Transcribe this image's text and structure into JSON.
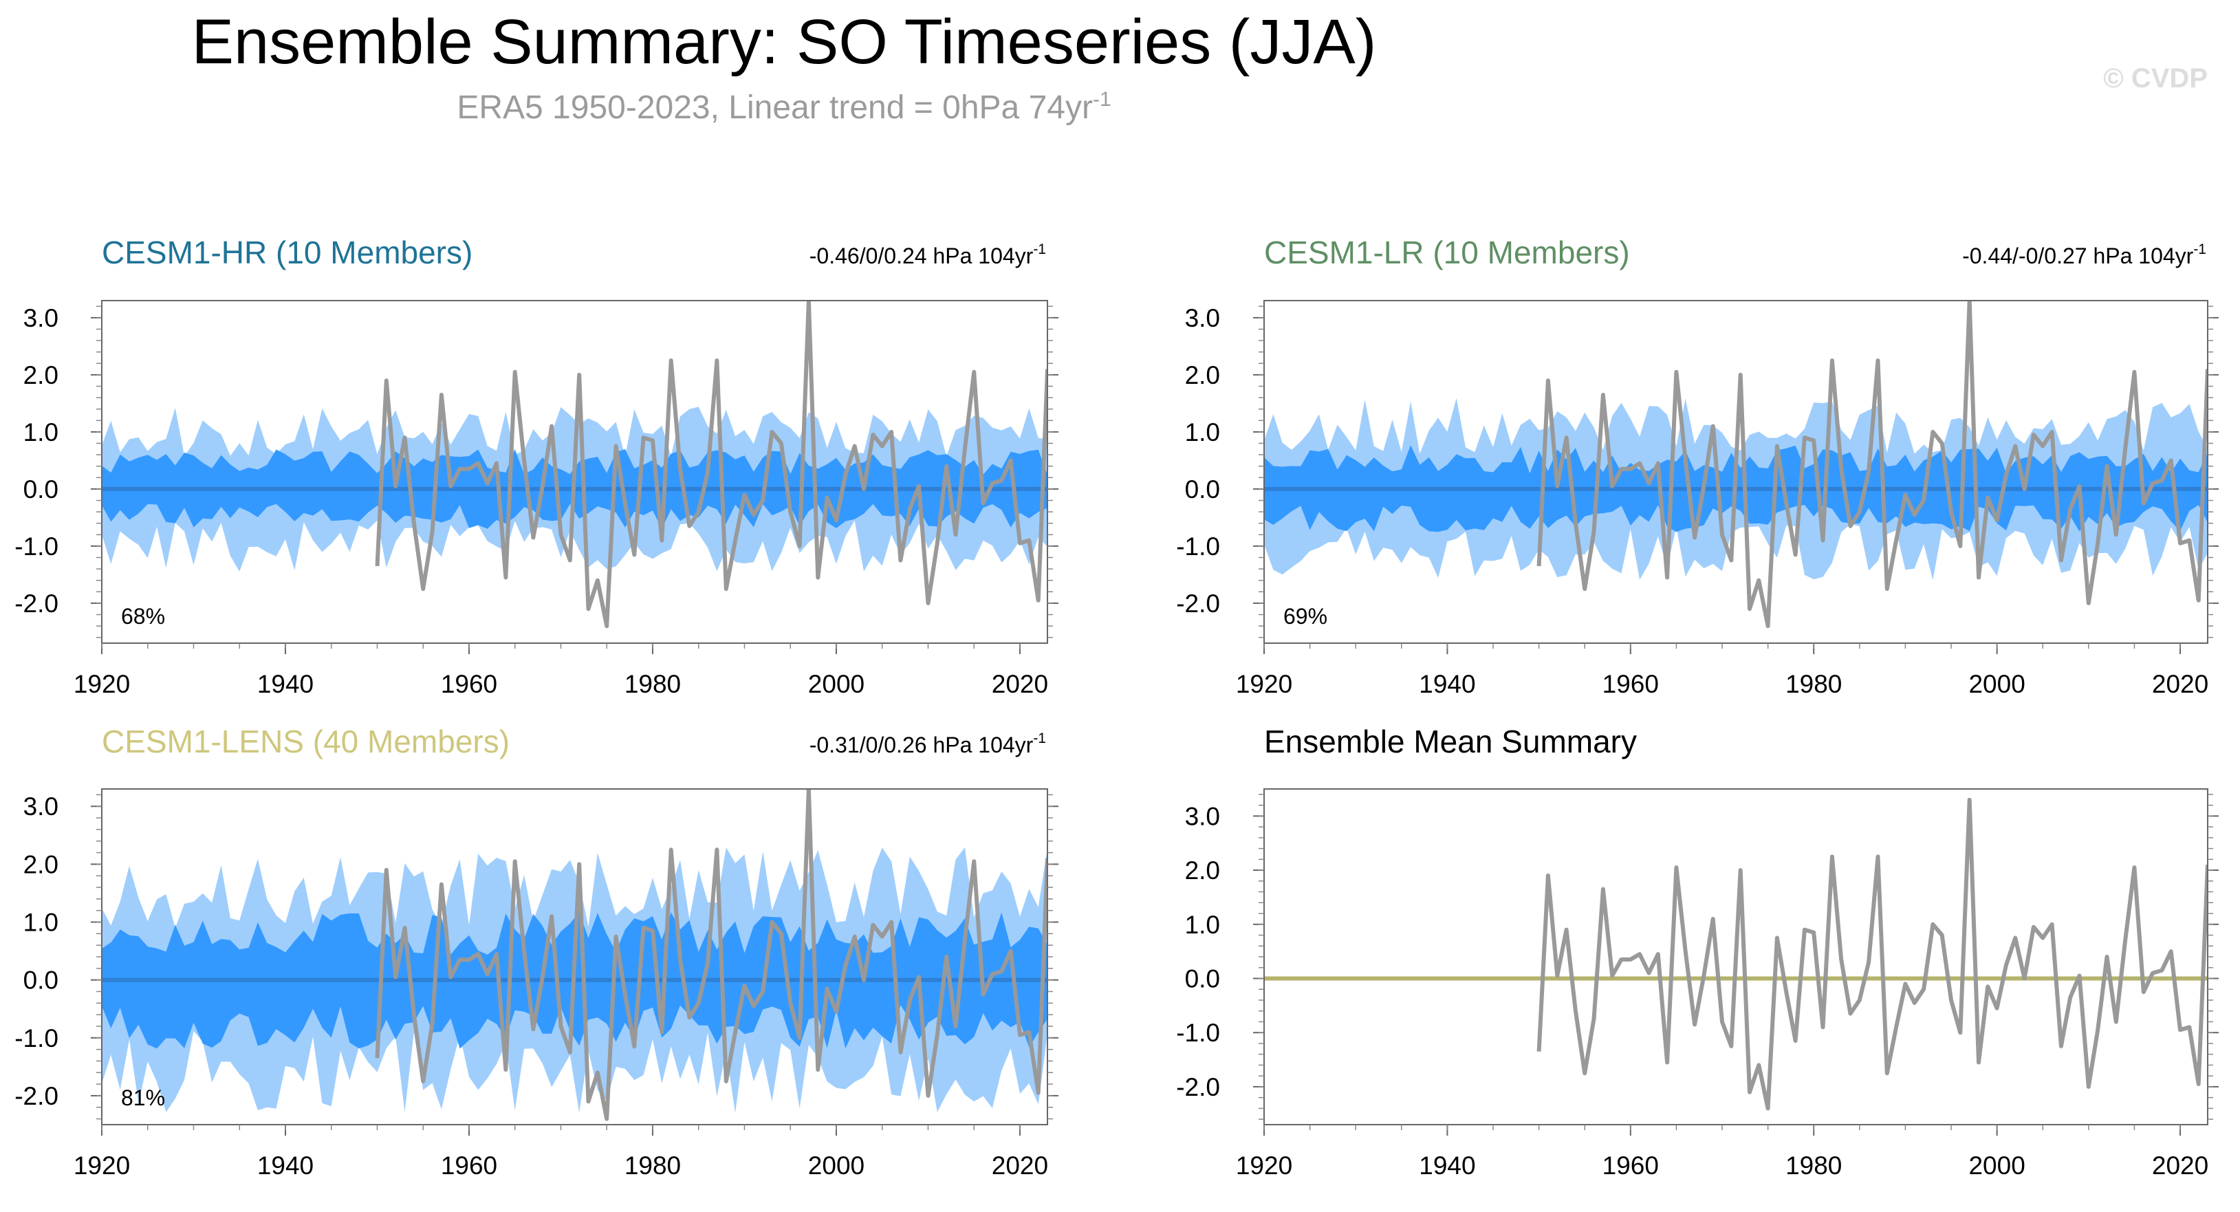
{
  "title": "Ensemble Summary: SO Timeseries (JJA)",
  "subtitle": {
    "main": "ERA5 1950-2023, Linear trend = 0hPa 74yr",
    "sup": "-1"
  },
  "watermark": "© CVDP",
  "colors": {
    "outer_band": "#9fcefd",
    "inner_band": "#3399ff",
    "ens_mean_line": "#2f7fd4",
    "obs_line": "#999999",
    "summary_zero_line": "#b5b36b",
    "title_hr": "#1f7397",
    "title_lr": "#5f8f64",
    "title_lens": "#cec77d",
    "title_summary": "#000000",
    "subtitle": "#9b9b9b",
    "watermark": "#dddddd"
  },
  "chart_data": [
    {
      "id": "hr",
      "type": "line",
      "title": "CESM1-HR (10 Members)",
      "trend_text": "-0.46/0/0.24 hPa 104yr",
      "trend_sup": "-1",
      "percent_label": "68%",
      "x_range": [
        1920,
        2023
      ],
      "ylim": [
        -2.7,
        3.3
      ],
      "yticks": [
        3.0,
        2.0,
        1.0,
        0.0,
        -1.0,
        -2.0
      ],
      "ytick_labels": [
        "3.0",
        "2.0",
        "1.0",
        "0.0",
        "-1.0",
        "-2.0"
      ],
      "xticks": [
        1920,
        1940,
        1960,
        1980,
        2000,
        2020
      ],
      "xtick_labels": [
        "1920",
        "1940",
        "1960",
        "1980",
        "2000",
        "2020"
      ],
      "outer_amplitude": 1.0,
      "inner_amplitude": 0.5,
      "band_seed": 11,
      "show_bands": true,
      "ensemble_mean_value": 0.0
    },
    {
      "id": "lr",
      "type": "line",
      "title": "CESM1-LR (10 Members)",
      "trend_text": "-0.44/-0/0.27 hPa 104yr",
      "trend_sup": "-1",
      "percent_label": "69%",
      "x_range": [
        1920,
        2023
      ],
      "ylim": [
        -2.7,
        3.3
      ],
      "yticks": [
        3.0,
        2.0,
        1.0,
        0.0,
        -1.0,
        -2.0
      ],
      "ytick_labels": [
        "3.0",
        "2.0",
        "1.0",
        "0.0",
        "-1.0",
        "-2.0"
      ],
      "xticks": [
        1920,
        1940,
        1960,
        1980,
        2000,
        2020
      ],
      "xtick_labels": [
        "1920",
        "1940",
        "1960",
        "1980",
        "2000",
        "2020"
      ],
      "outer_amplitude": 1.1,
      "inner_amplitude": 0.55,
      "band_seed": 23,
      "show_bands": true,
      "ensemble_mean_value": 0.0
    },
    {
      "id": "lens",
      "type": "line",
      "title": "CESM1-LENS (40 Members)",
      "trend_text": "-0.31/0/0.26 hPa 104yr",
      "trend_sup": "-1",
      "percent_label": "81%",
      "x_range": [
        1920,
        2023
      ],
      "ylim": [
        -2.5,
        3.3
      ],
      "yticks": [
        3.0,
        2.0,
        1.0,
        0.0,
        -1.0,
        -2.0
      ],
      "ytick_labels": [
        "3.0",
        "2.0",
        "1.0",
        "0.0",
        "-1.0",
        "-2.0"
      ],
      "xticks": [
        1920,
        1940,
        1960,
        1980,
        2000,
        2020
      ],
      "xtick_labels": [
        "1920",
        "1940",
        "1960",
        "1980",
        "2000",
        "2020"
      ],
      "outer_amplitude": 1.6,
      "inner_amplitude": 0.85,
      "band_seed": 37,
      "show_bands": true,
      "ensemble_mean_value": 0.0
    },
    {
      "id": "summary",
      "type": "line",
      "title": "Ensemble Mean Summary",
      "trend_text": "",
      "trend_sup": "",
      "percent_label": "",
      "x_range": [
        1920,
        2023
      ],
      "ylim": [
        -2.7,
        3.5
      ],
      "yticks": [
        3.0,
        2.0,
        1.0,
        0.0,
        -1.0,
        -2.0
      ],
      "ytick_labels": [
        "3.0",
        "2.0",
        "1.0",
        "0.0",
        "-1.0",
        "-2.0"
      ],
      "xticks": [
        1920,
        1940,
        1960,
        1980,
        2000,
        2020
      ],
      "xtick_labels": [
        "1920",
        "1940",
        "1960",
        "1980",
        "2000",
        "2020"
      ],
      "show_bands": false,
      "ensemble_mean_value": 0.0
    }
  ],
  "observations": {
    "name": "ERA5",
    "years": [
      1950,
      1951,
      1952,
      1953,
      1954,
      1955,
      1956,
      1957,
      1958,
      1959,
      1960,
      1961,
      1962,
      1963,
      1964,
      1965,
      1966,
      1967,
      1968,
      1969,
      1970,
      1971,
      1972,
      1973,
      1974,
      1975,
      1976,
      1977,
      1978,
      1979,
      1980,
      1981,
      1982,
      1983,
      1984,
      1985,
      1986,
      1987,
      1988,
      1989,
      1990,
      1991,
      1992,
      1993,
      1994,
      1995,
      1996,
      1997,
      1998,
      1999,
      2000,
      2001,
      2002,
      2003,
      2004,
      2005,
      2006,
      2007,
      2008,
      2009,
      2010,
      2011,
      2012,
      2013,
      2014,
      2015,
      2016,
      2017,
      2018,
      2019,
      2020,
      2021,
      2022,
      2023
    ],
    "values": [
      -1.35,
      1.9,
      0.05,
      0.9,
      -0.6,
      -1.75,
      -0.75,
      1.65,
      0.05,
      0.35,
      0.35,
      0.45,
      0.1,
      0.45,
      -1.55,
      2.05,
      0.5,
      -0.85,
      0.05,
      1.1,
      -0.8,
      -1.25,
      2.0,
      -2.1,
      -1.6,
      -2.4,
      0.75,
      -0.25,
      -1.15,
      0.9,
      0.85,
      -0.9,
      2.25,
      0.35,
      -0.65,
      -0.4,
      0.3,
      2.25,
      -1.75,
      -0.9,
      -0.1,
      -0.45,
      -0.2,
      1.0,
      0.8,
      -0.4,
      -1.0,
      3.3,
      -1.55,
      -0.15,
      -0.55,
      0.25,
      0.75,
      0.0,
      0.95,
      0.75,
      1.0,
      -1.25,
      -0.35,
      0.05,
      -2.0,
      -0.95,
      0.4,
      -0.8,
      0.7,
      2.05,
      -0.25,
      0.1,
      0.15,
      0.5,
      -0.95,
      -0.9,
      -1.95,
      2.1
    ]
  }
}
